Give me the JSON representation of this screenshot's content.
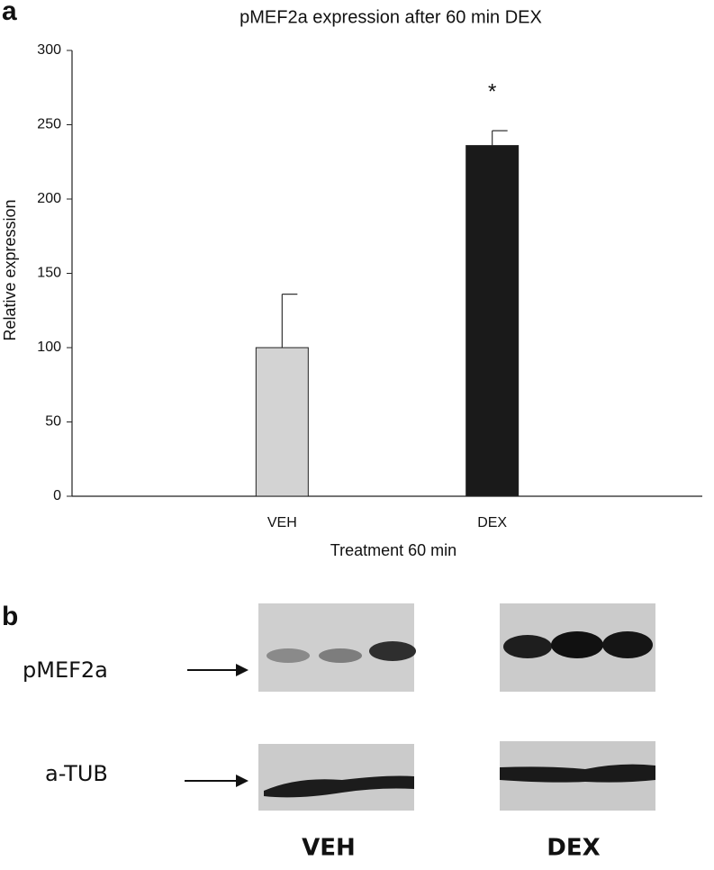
{
  "panel_labels": [
    "a",
    "b"
  ],
  "chart_data": {
    "type": "bar",
    "title": "pMEF2a expression after 60 min DEX",
    "x_label": "Treatment 60 min",
    "y_label": "Relative expression",
    "categories": [
      "VEH",
      "DEX"
    ],
    "values": [
      100,
      236
    ],
    "errors": [
      36,
      10
    ],
    "colors": [
      "#d3d3d3",
      "#1a1a1a"
    ],
    "significance": [
      null,
      "*"
    ],
    "ylim": [
      0,
      300
    ],
    "yticks": [
      0,
      50,
      100,
      150,
      200,
      250,
      300
    ],
    "grid": false
  },
  "blot": {
    "rows": [
      "pMEF2a",
      "a-TUB"
    ],
    "groups": [
      "VEH",
      "DEX"
    ]
  }
}
